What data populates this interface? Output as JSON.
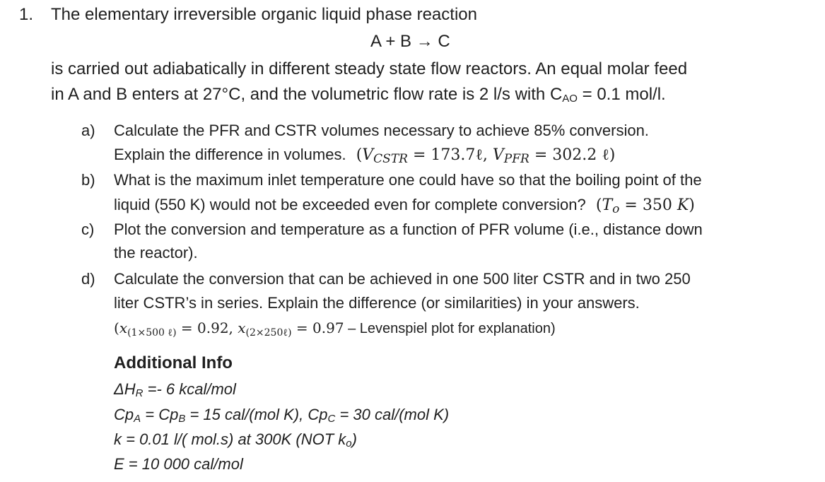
{
  "problem": {
    "number": "1.",
    "title": "The elementary irreversible organic liquid phase reaction",
    "reaction": "A + B → C",
    "desc_line1": "is carried out adiabatically in different steady state flow reactors. An equal molar feed",
    "desc_line2_pre": "in A and B enters at 27°C, and the volumetric flow rate is 2 l/s with C",
    "desc_line2_sub": "AO",
    "desc_line2_post": " = 0.1 mol/l."
  },
  "parts": {
    "a": {
      "label": "a)",
      "line1": "Calculate the PFR and CSTR volumes necessary to achieve 85% conversion.",
      "line2_text": "Explain the difference in volumes.",
      "answer": "(V₁CSTR = 173.7ℓ, V₁PFR = 302.2 ℓ)",
      "answer_parts": {
        "open": "(",
        "v": "V",
        "cstr_sub": "CSTR",
        "eq1": " = 173.7ℓ, ",
        "pfr_sub": "PFR",
        "eq2": " = 302.2 ℓ)"
      }
    },
    "b": {
      "label": "b)",
      "line1": "What is the maximum inlet temperature one could have so that the boiling point of the",
      "line2_text": "liquid (550 K) would not be exceeded even for complete conversion?",
      "answer_parts": {
        "open": "(",
        "t": "T",
        "sub": "o",
        "eq": " =  350 ",
        "k": "K",
        "close": ")"
      }
    },
    "c": {
      "label": "c)",
      "line1": "Plot the conversion and temperature as a function of PFR volume (i.e., distance down",
      "line2": "the reactor)."
    },
    "d": {
      "label": "d)",
      "line1": "Calculate the conversion that can be achieved in one 500 liter CSTR and in two 250",
      "line2": "liter CSTR’s in series.  Explain the difference (or similarities) in your answers.",
      "answer_parts": {
        "open": "(",
        "x1": "x",
        "sub1": "(1×500 ℓ)",
        "eq1": " = 0.92,  ",
        "x2": "x",
        "sub2": "(2×250ℓ)",
        "eq2": " = 0.97",
        "tail": " – Levenspiel plot for explanation)"
      }
    }
  },
  "additional_info": {
    "heading": "Additional Info",
    "dh": {
      "pre": "ΔH",
      "sub": "R",
      "post": " =- 6 kcal/mol"
    },
    "cp": {
      "a": "Cp",
      "a_sub": "A",
      "eq": " = Cp",
      "b_sub": "B",
      "mid": " = 15 cal/(mol K),  Cp",
      "c_sub": "C",
      "post": " = 30 cal/(mol K)"
    },
    "k": {
      "pre": "k = 0.01  l/( mol.s)  at 300K  (NOT k",
      "sub": "o",
      "post": ")"
    },
    "e": "E = 10 000 cal/mol"
  }
}
